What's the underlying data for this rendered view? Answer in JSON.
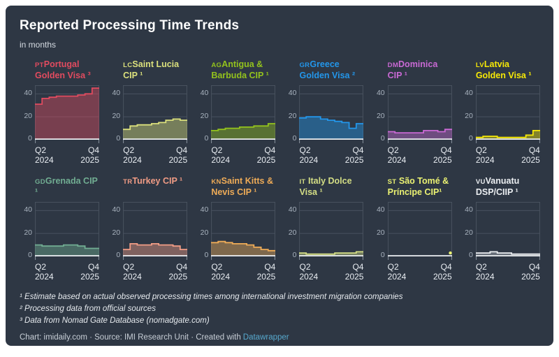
{
  "header": {
    "title": "Reported Processing Time Trends",
    "subtitle": "in months"
  },
  "axis": {
    "y_ticks": [
      "40",
      "20",
      "0"
    ],
    "x_start": [
      "Q2",
      "2024"
    ],
    "x_end": [
      "Q4",
      "2025"
    ]
  },
  "chart_data": {
    "type": "area",
    "subtype": "step-area-small-multiples",
    "unit": "months",
    "x_range": [
      "Q2 2024",
      "Q4 2025"
    ],
    "ylim": [
      0,
      47.5
    ],
    "grid": "on",
    "series": [
      {
        "prefix": "PT",
        "name": "Portugal Golden Visa ³",
        "color": "#e14b5f",
        "values": [
          31,
          36,
          37,
          38,
          38,
          38,
          39,
          40,
          45
        ]
      },
      {
        "prefix": "LC",
        "name": "Saint Lucia CIP ¹",
        "color": "#dbe07c",
        "values": [
          9,
          12,
          13,
          13,
          14,
          15,
          17,
          18,
          17
        ]
      },
      {
        "prefix": "AG",
        "name": "Antigua & Barbuda CIP ¹",
        "color": "#93c21d",
        "values": [
          8,
          9,
          10,
          10,
          11,
          11,
          12,
          12,
          14
        ]
      },
      {
        "prefix": "GR",
        "name": "Greece Golden Visa ²",
        "color": "#2396ea",
        "values": [
          19,
          20,
          20,
          18,
          17,
          16,
          15,
          10,
          14
        ]
      },
      {
        "prefix": "DM",
        "name": "Dominica CIP ¹",
        "color": "#c969d4",
        "values": [
          7,
          6,
          6,
          6,
          6,
          8,
          8,
          7,
          9
        ]
      },
      {
        "prefix": "LV",
        "name": "Latvia Golden Visa ¹",
        "color": "#f7e906",
        "values": [
          2,
          3,
          3,
          2,
          2,
          2,
          2,
          4,
          8
        ]
      },
      {
        "prefix": "GD",
        "name": "Grenada CIP ¹",
        "color": "#71ad92",
        "values": [
          10,
          9,
          9,
          9,
          10,
          10,
          9,
          7,
          7
        ]
      },
      {
        "prefix": "TR",
        "name": "Turkey CIP ¹",
        "color": "#f19c85",
        "values": [
          6,
          11,
          10,
          10,
          11,
          10,
          10,
          9,
          6
        ]
      },
      {
        "prefix": "KN",
        "name": "Saint Kitts & Nevis CIP ¹",
        "color": "#eeab57",
        "values": [
          12,
          13,
          12,
          11,
          11,
          10,
          8,
          6,
          5
        ]
      },
      {
        "prefix": "IT",
        "name": " Italy Dolce Visa ¹",
        "color": "#d4de85",
        "values": [
          3,
          2,
          2,
          2,
          2,
          3,
          3,
          3,
          4
        ]
      },
      {
        "prefix": "ST",
        "name": " São Tomé & Príncipe CIP¹",
        "color": "#ebf272",
        "point_only": true,
        "values": [
          3
        ]
      },
      {
        "prefix": "VU",
        "name": "Vanuatu DSP/CIIP ¹",
        "color": "#ebeef1",
        "fill_opacity": 0.3,
        "values": [
          3,
          3,
          4,
          3,
          3,
          2,
          2,
          2,
          2
        ]
      }
    ]
  },
  "footnotes": [
    "¹ Estimate based on actual observed processing times among international investment migration companies",
    "² Processing data from official sources",
    "³ Data from Nomad Gate Database (nomadgate.com)"
  ],
  "footer": {
    "text": "Chart: imidaily.com · Source: IMI Research Unit · Created with",
    "link": "Datawrapper"
  }
}
